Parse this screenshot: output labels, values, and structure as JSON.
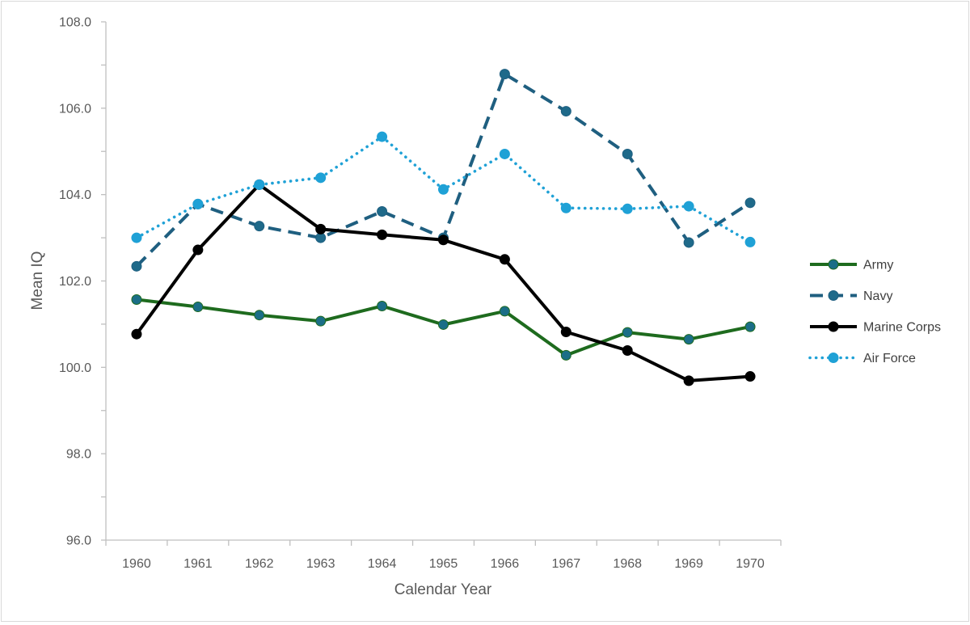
{
  "chart_data": {
    "type": "line",
    "title": "",
    "xlabel": "Calendar Year",
    "ylabel": "Mean IQ",
    "ylim": [
      96.0,
      108.0
    ],
    "y_major_step": 2.0,
    "y_minor_step": 1.0,
    "y_tick_labels": [
      "96.0",
      "98.0",
      "100.0",
      "102.0",
      "104.0",
      "106.0",
      "108.0"
    ],
    "grid": false,
    "legend_position": "right",
    "categories": [
      "1960",
      "1961",
      "1962",
      "1963",
      "1964",
      "1965",
      "1966",
      "1967",
      "1968",
      "1969",
      "1970"
    ],
    "series": [
      {
        "name": "Army",
        "color": "#1e6b1e",
        "marker_color": "#1b6e87",
        "line_style": "solid",
        "values": [
          101.57,
          101.4,
          101.21,
          101.07,
          101.42,
          100.99,
          101.3,
          100.28,
          100.81,
          100.65,
          100.94
        ]
      },
      {
        "name": "Navy",
        "color": "#1f5f80",
        "marker_color": "#1f6a8a",
        "line_style": "dashed",
        "values": [
          102.34,
          103.78,
          103.27,
          103.0,
          103.61,
          103.0,
          106.79,
          105.93,
          104.94,
          102.89,
          103.81
        ]
      },
      {
        "name": "Marine Corps",
        "color": "#000000",
        "marker_color": "#000000",
        "line_style": "solid",
        "values": [
          100.77,
          102.72,
          104.23,
          103.2,
          103.07,
          102.95,
          102.5,
          100.82,
          100.39,
          99.69,
          99.79
        ]
      },
      {
        "name": "Air Force",
        "color": "#1fa1d6",
        "marker_color": "#1fa1d6",
        "line_style": "dotted",
        "values": [
          103.0,
          103.78,
          104.23,
          104.39,
          105.34,
          104.12,
          104.94,
          103.69,
          103.67,
          103.73,
          102.9
        ]
      }
    ]
  }
}
